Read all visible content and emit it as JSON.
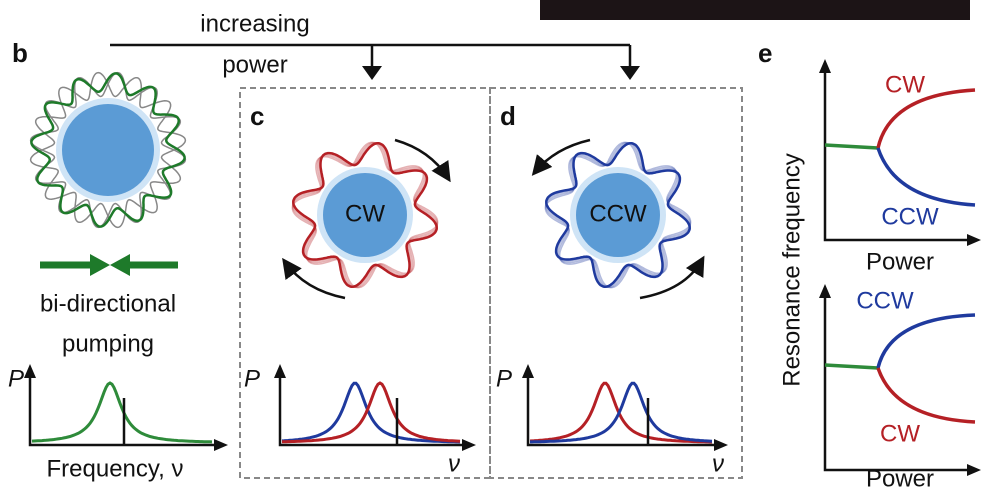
{
  "top": {
    "line1": "increasing",
    "line2": "power"
  },
  "panels": {
    "b": {
      "label": "b",
      "caption1": "bi-directional",
      "caption2": "pumping",
      "y_axis": "P",
      "x_axis": "Frequency, ν"
    },
    "c": {
      "label": "c",
      "ring_label": "CW",
      "y_axis": "P",
      "x_axis": "ν"
    },
    "d": {
      "label": "d",
      "ring_label": "CCW",
      "y_axis": "P",
      "x_axis": "ν"
    },
    "e": {
      "label": "e",
      "y_axis": "Resonance frequency",
      "top": {
        "upper": "CW",
        "lower": "CCW",
        "x_axis": "Power"
      },
      "bottom": {
        "upper": "CCW",
        "lower": "CW",
        "x_axis": "Power"
      }
    }
  }
}
